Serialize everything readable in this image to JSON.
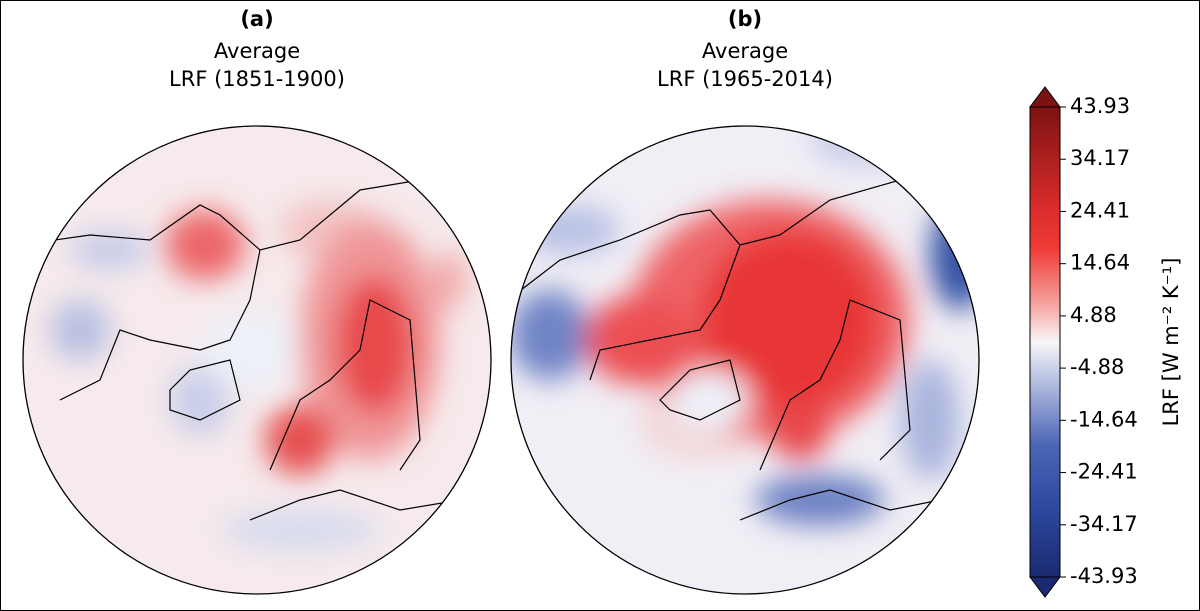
{
  "panels": [
    {
      "label": "(a)",
      "title": [
        "Average",
        "LRF (1851-1900)"
      ]
    },
    {
      "label": "(b)",
      "title": [
        "Average",
        "LRF (1965-2014)"
      ]
    }
  ],
  "colorbar": {
    "label": "LRF [W m⁻² K⁻¹]",
    "lim": [
      -43.93,
      43.93
    ],
    "ticks": [
      43.93,
      34.17,
      24.41,
      14.64,
      4.88,
      -4.88,
      -14.64,
      -24.41,
      -34.17,
      -43.93
    ]
  }
}
